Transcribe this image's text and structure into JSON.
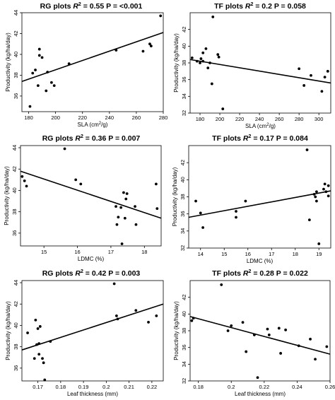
{
  "figure": {
    "panels": [
      {
        "id": "rg-sla",
        "group": "RG plots",
        "r2": "0.55",
        "p_text": "P = <0.001"
      },
      {
        "id": "tf-sla",
        "group": "TF plots",
        "r2": "0.2",
        "p_text": "P = 0.058"
      },
      {
        "id": "rg-ldmc",
        "group": "RG plots",
        "r2": "0.36",
        "p_text": "P = 0.007"
      },
      {
        "id": "tf-ldmc",
        "group": "TF plots",
        "r2": "0.17",
        "p_text": "P = 0.084"
      },
      {
        "id": "rg-lt",
        "group": "RG plots",
        "r2": "0.42",
        "p_text": "P = 0.003"
      },
      {
        "id": "tf-lt",
        "group": "TF plots",
        "r2": "0.28",
        "p_text": "P = 0.022"
      }
    ]
  },
  "chart_data": [
    {
      "type": "scatter",
      "title": "RG plots R2 = 0.55 P = <0.001",
      "xlabel": "SLA (cm2/g)",
      "ylabel": "Productivity (kg/ha/day)",
      "xlim": [
        175,
        280
      ],
      "ylim": [
        34.5,
        44
      ],
      "xticks": [
        180,
        200,
        220,
        240,
        260,
        280
      ],
      "yticks": [
        36,
        38,
        40,
        42,
        44
      ],
      "points": [
        [
          181,
          35.0
        ],
        [
          183,
          38.2
        ],
        [
          185,
          38.5
        ],
        [
          187,
          37.0
        ],
        [
          188,
          39.9
        ],
        [
          188,
          40.5
        ],
        [
          190,
          39.7
        ],
        [
          193,
          36.5
        ],
        [
          194,
          38.3
        ],
        [
          197,
          37.3
        ],
        [
          199,
          37.0
        ],
        [
          210,
          39.1
        ],
        [
          245,
          40.4
        ],
        [
          265,
          40.3
        ],
        [
          270,
          41.0
        ],
        [
          271,
          40.8
        ],
        [
          278,
          43.7
        ]
      ],
      "fit": [
        [
          175,
          37.4
        ],
        [
          280,
          42.1
        ]
      ],
      "grid": false
    },
    {
      "type": "scatter",
      "title": "TF plots R2 = 0.2 P = 0.058",
      "xlabel": "SLA (cm2/g)",
      "ylabel": "Productivity (kg/ha/day)",
      "xlim": [
        170,
        312
      ],
      "ylim": [
        32,
        44
      ],
      "xticks": [
        180,
        200,
        220,
        240,
        260,
        280,
        300
      ],
      "yticks": [
        32,
        34,
        36,
        38,
        40,
        42
      ],
      "points": [
        [
          172,
          38.6
        ],
        [
          177,
          38.2
        ],
        [
          180,
          38.0
        ],
        [
          181,
          38.5
        ],
        [
          183,
          39.2
        ],
        [
          183,
          38.2
        ],
        [
          186,
          39.7
        ],
        [
          188,
          37.4
        ],
        [
          190,
          38.0
        ],
        [
          192,
          35.5
        ],
        [
          193,
          43.5
        ],
        [
          198,
          39.0
        ],
        [
          199,
          38.7
        ],
        [
          203,
          32.5
        ],
        [
          280,
          37.3
        ],
        [
          285,
          35.3
        ],
        [
          292,
          36.5
        ],
        [
          303,
          34.6
        ],
        [
          306,
          36.3
        ],
        [
          309,
          37.0
        ]
      ],
      "fit": [
        [
          170,
          38.4
        ],
        [
          312,
          35.6
        ]
      ],
      "grid": false
    },
    {
      "type": "scatter",
      "title": "RG plots R2 = 0.36 P = 0.007",
      "xlabel": "LDMC (%)",
      "ylabel": "Productivity (kg/ha/day)",
      "xlim": [
        14.3,
        18.5
      ],
      "ylim": [
        34.8,
        44.2
      ],
      "xticks": [
        15,
        16,
        17,
        18
      ],
      "yticks": [
        36,
        38,
        40,
        42,
        44
      ],
      "points": [
        [
          14.35,
          41.3
        ],
        [
          14.42,
          40.9
        ],
        [
          14.48,
          40.4
        ],
        [
          15.62,
          43.9
        ],
        [
          15.95,
          41.0
        ],
        [
          16.1,
          40.6
        ],
        [
          17.15,
          38.5
        ],
        [
          17.18,
          36.8
        ],
        [
          17.22,
          37.5
        ],
        [
          17.3,
          38.4
        ],
        [
          17.33,
          35.0
        ],
        [
          17.38,
          39.8
        ],
        [
          17.42,
          37.4
        ],
        [
          17.45,
          39.2
        ],
        [
          17.48,
          39.7
        ],
        [
          17.72,
          38.5
        ],
        [
          17.75,
          36.8
        ],
        [
          18.38,
          38.3
        ],
        [
          18.35,
          40.6
        ]
      ],
      "fit": [
        [
          14.3,
          41.8
        ],
        [
          18.5,
          37.4
        ]
      ],
      "grid": false
    },
    {
      "type": "scatter",
      "title": "TF plots R2 = 0.17 P = 0.084",
      "xlabel": "LDMC (%)",
      "ylabel": "Productivity (kg/ha/day)",
      "xlim": [
        13.5,
        19.5
      ],
      "ylim": [
        32,
        44
      ],
      "xticks": [
        14,
        15,
        16,
        17,
        18,
        19
      ],
      "yticks": [
        32,
        34,
        36,
        38,
        40,
        42
      ],
      "points": [
        [
          13.8,
          37.5
        ],
        [
          14.0,
          36.1
        ],
        [
          14.1,
          34.4
        ],
        [
          15.5,
          36.3
        ],
        [
          15.5,
          35.6
        ],
        [
          15.9,
          37.5
        ],
        [
          18.5,
          43.5
        ],
        [
          18.6,
          35.3
        ],
        [
          18.8,
          38.3
        ],
        [
          18.85,
          38.0
        ],
        [
          18.9,
          38.6
        ],
        [
          18.9,
          37.5
        ],
        [
          19.0,
          32.5
        ],
        [
          19.2,
          38.9
        ],
        [
          19.25,
          39.5
        ],
        [
          19.3,
          38.6
        ],
        [
          19.4,
          38.1
        ],
        [
          19.4,
          39.3
        ]
      ],
      "fit": [
        [
          13.5,
          35.6
        ],
        [
          19.5,
          38.7
        ]
      ],
      "grid": false
    },
    {
      "type": "scatter",
      "title": "RG plots R2 = 0.42 P = 0.003",
      "xlabel": "Leaf thickness (mm)",
      "ylabel": "Productivity (kg/ha/day)",
      "xlim": [
        0.163,
        0.225
      ],
      "ylim": [
        34.8,
        44.2
      ],
      "xticks": [
        0.17,
        0.18,
        0.19,
        0.2,
        0.21,
        0.22
      ],
      "yticks": [
        36,
        38,
        40,
        42,
        44
      ],
      "points": [
        [
          0.1655,
          39.3
        ],
        [
          0.1685,
          36.9
        ],
        [
          0.169,
          40.5
        ],
        [
          0.1695,
          38.2
        ],
        [
          0.17,
          39.7
        ],
        [
          0.1705,
          38.3
        ],
        [
          0.1705,
          37.3
        ],
        [
          0.171,
          39.9
        ],
        [
          0.172,
          36.9
        ],
        [
          0.1725,
          36.5
        ],
        [
          0.173,
          34.9
        ],
        [
          0.1755,
          38.5
        ],
        [
          0.2035,
          43.9
        ],
        [
          0.2045,
          40.9
        ],
        [
          0.205,
          40.6
        ],
        [
          0.213,
          41.4
        ],
        [
          0.2185,
          40.3
        ],
        [
          0.222,
          40.9
        ]
      ],
      "fit": [
        [
          0.163,
          37.7
        ],
        [
          0.225,
          42.0
        ]
      ],
      "grid": false
    },
    {
      "type": "scatter",
      "title": "TF plots R2 = 0.28 P = 0.022",
      "xlabel": "Leaf thickness (mm)",
      "ylabel": "Productivity (kg/ha/day)",
      "xlim": [
        0.175,
        0.26
      ],
      "ylim": [
        32,
        44
      ],
      "xticks": [
        0.18,
        0.2,
        0.22,
        0.24,
        0.26
      ],
      "yticks": [
        32,
        34,
        36,
        38,
        40,
        42
      ],
      "points": [
        [
          0.176,
          39.2
        ],
        [
          0.177,
          39.5
        ],
        [
          0.194,
          43.5
        ],
        [
          0.198,
          38.0
        ],
        [
          0.2,
          38.6
        ],
        [
          0.207,
          39.0
        ],
        [
          0.209,
          35.5
        ],
        [
          0.214,
          37.5
        ],
        [
          0.216,
          32.4
        ],
        [
          0.222,
          38.2
        ],
        [
          0.223,
          37.5
        ],
        [
          0.229,
          38.3
        ],
        [
          0.23,
          35.3
        ],
        [
          0.233,
          38.1
        ],
        [
          0.241,
          36.2
        ],
        [
          0.248,
          37.0
        ],
        [
          0.251,
          34.6
        ],
        [
          0.258,
          36.1
        ]
      ],
      "fit": [
        [
          0.175,
          39.7
        ],
        [
          0.26,
          35.2
        ]
      ],
      "grid": false
    }
  ]
}
